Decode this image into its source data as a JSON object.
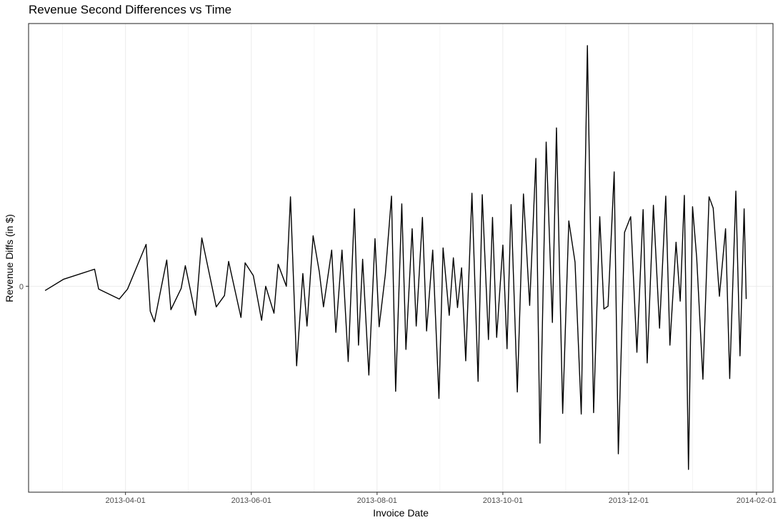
{
  "chart_data": {
    "type": "line",
    "title": "Revenue Second Differences vs Time",
    "xlabel": "Invoice Date",
    "ylabel": "Revenue Diffs (in $)",
    "x_axis": {
      "scale": "date",
      "tick_labels": [
        "2013-04-01",
        "2013-06-01",
        "2013-08-01",
        "2013-10-01",
        "2013-12-01",
        "2014-02-01"
      ],
      "range": [
        "2013-02-13",
        "2014-02-09"
      ]
    },
    "y_axis": {
      "tick_labels": [
        "0"
      ],
      "range": [
        -290,
        370
      ]
    },
    "grid": true,
    "series": [
      {
        "color": "#000000",
        "points": [
          [
            "2013-02-21",
            -6
          ],
          [
            "2013-03-02",
            10
          ],
          [
            "2013-03-17",
            24
          ],
          [
            "2013-03-19",
            -4
          ],
          [
            "2013-03-29",
            -18
          ],
          [
            "2013-04-02",
            -4
          ],
          [
            "2013-04-11",
            59
          ],
          [
            "2013-04-13",
            -35
          ],
          [
            "2013-04-15",
            -50
          ],
          [
            "2013-04-21",
            37
          ],
          [
            "2013-04-23",
            -33
          ],
          [
            "2013-04-28",
            -3
          ],
          [
            "2013-04-30",
            29
          ],
          [
            "2013-05-05",
            -41
          ],
          [
            "2013-05-08",
            68
          ],
          [
            "2013-05-15",
            -29
          ],
          [
            "2013-05-19",
            -13
          ],
          [
            "2013-05-21",
            35
          ],
          [
            "2013-05-27",
            -44
          ],
          [
            "2013-05-29",
            33
          ],
          [
            "2013-06-02",
            15
          ],
          [
            "2013-06-06",
            -48
          ],
          [
            "2013-06-08",
            0
          ],
          [
            "2013-06-12",
            -38
          ],
          [
            "2013-06-14",
            31
          ],
          [
            "2013-06-18",
            0
          ],
          [
            "2013-06-20",
            126
          ],
          [
            "2013-06-23",
            -112
          ],
          [
            "2013-06-26",
            18
          ],
          [
            "2013-06-28",
            -56
          ],
          [
            "2013-07-01",
            71
          ],
          [
            "2013-07-04",
            20
          ],
          [
            "2013-07-06",
            -29
          ],
          [
            "2013-07-10",
            51
          ],
          [
            "2013-07-12",
            -65
          ],
          [
            "2013-07-15",
            51
          ],
          [
            "2013-07-18",
            -106
          ],
          [
            "2013-07-21",
            109
          ],
          [
            "2013-07-23",
            -83
          ],
          [
            "2013-07-25",
            38
          ],
          [
            "2013-07-28",
            -125
          ],
          [
            "2013-07-31",
            67
          ],
          [
            "2013-08-02",
            -57
          ],
          [
            "2013-08-05",
            17
          ],
          [
            "2013-08-08",
            127
          ],
          [
            "2013-08-10",
            -148
          ],
          [
            "2013-08-13",
            116
          ],
          [
            "2013-08-15",
            -89
          ],
          [
            "2013-08-18",
            81
          ],
          [
            "2013-08-20",
            -56
          ],
          [
            "2013-08-23",
            97
          ],
          [
            "2013-08-25",
            -63
          ],
          [
            "2013-08-28",
            51
          ],
          [
            "2013-08-31",
            -158
          ],
          [
            "2013-09-02",
            54
          ],
          [
            "2013-09-05",
            -41
          ],
          [
            "2013-09-07",
            40
          ],
          [
            "2013-09-09",
            -30
          ],
          [
            "2013-09-11",
            26
          ],
          [
            "2013-09-13",
            -105
          ],
          [
            "2013-09-16",
            131
          ],
          [
            "2013-09-19",
            -134
          ],
          [
            "2013-09-21",
            129
          ],
          [
            "2013-09-24",
            -75
          ],
          [
            "2013-09-26",
            97
          ],
          [
            "2013-09-28",
            -72
          ],
          [
            "2013-10-01",
            58
          ],
          [
            "2013-10-03",
            -88
          ],
          [
            "2013-10-05",
            115
          ],
          [
            "2013-10-08",
            -149
          ],
          [
            "2013-10-11",
            130
          ],
          [
            "2013-10-14",
            -27
          ],
          [
            "2013-10-17",
            180
          ],
          [
            "2013-10-19",
            -221
          ],
          [
            "2013-10-22",
            203
          ],
          [
            "2013-10-25",
            -51
          ],
          [
            "2013-10-27",
            223
          ],
          [
            "2013-10-30",
            -179
          ],
          [
            "2013-11-02",
            92
          ],
          [
            "2013-11-05",
            34
          ],
          [
            "2013-11-08",
            -180
          ],
          [
            "2013-11-11",
            339
          ],
          [
            "2013-11-14",
            -178
          ],
          [
            "2013-11-17",
            98
          ],
          [
            "2013-11-19",
            -32
          ],
          [
            "2013-11-21",
            -28
          ],
          [
            "2013-11-24",
            161
          ],
          [
            "2013-11-26",
            -236
          ],
          [
            "2013-11-29",
            76
          ],
          [
            "2013-12-02",
            98
          ],
          [
            "2013-12-05",
            -93
          ],
          [
            "2013-12-08",
            108
          ],
          [
            "2013-12-10",
            -108
          ],
          [
            "2013-12-13",
            114
          ],
          [
            "2013-12-16",
            -59
          ],
          [
            "2013-12-19",
            127
          ],
          [
            "2013-12-21",
            -83
          ],
          [
            "2013-12-24",
            62
          ],
          [
            "2013-12-26",
            -21
          ],
          [
            "2013-12-28",
            128
          ],
          [
            "2013-12-30",
            -258
          ],
          [
            "2014-01-01",
            112
          ],
          [
            "2014-01-03",
            40
          ],
          [
            "2014-01-06",
            -131
          ],
          [
            "2014-01-09",
            126
          ],
          [
            "2014-01-11",
            110
          ],
          [
            "2014-01-14",
            -14
          ],
          [
            "2014-01-17",
            81
          ],
          [
            "2014-01-19",
            -130
          ],
          [
            "2014-01-22",
            134
          ],
          [
            "2014-01-24",
            -98
          ],
          [
            "2014-01-26",
            109
          ],
          [
            "2014-01-27",
            -18
          ]
        ]
      }
    ]
  }
}
